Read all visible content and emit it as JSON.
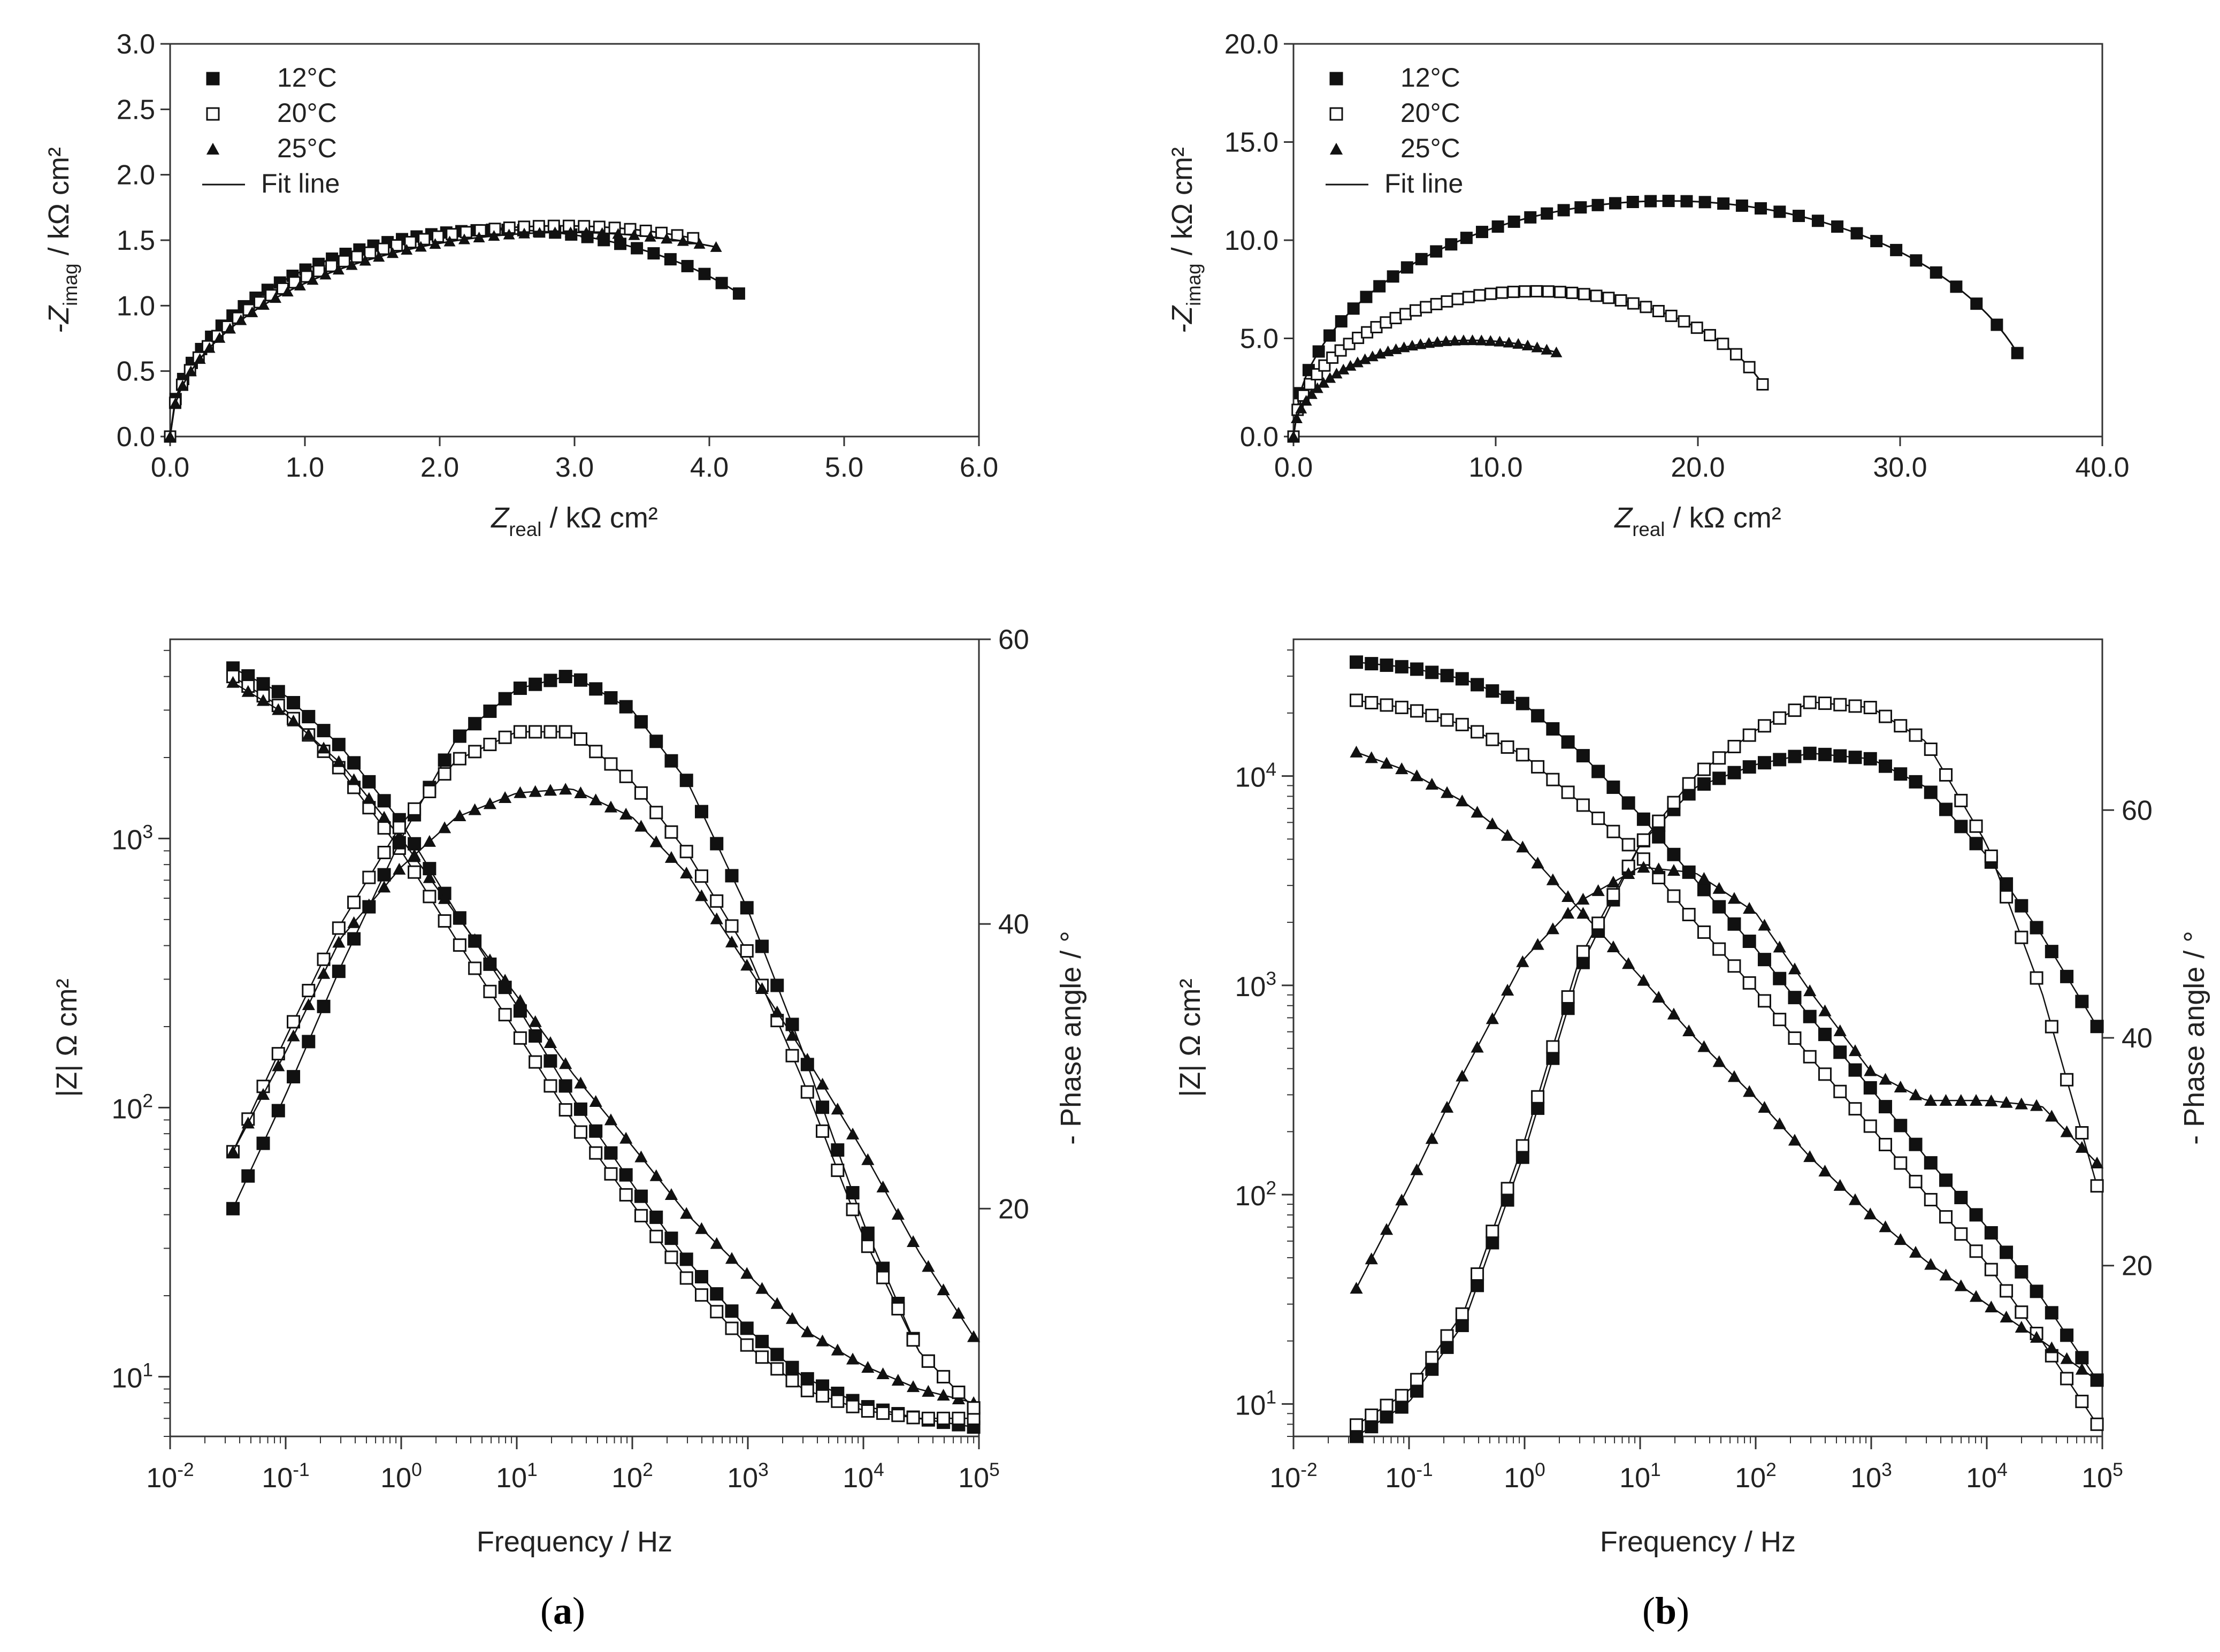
{
  "figure": {
    "panel_labels": [
      {
        "open": "(",
        "letter": "a",
        "close": ")"
      },
      {
        "open": "(",
        "letter": "b",
        "close": ")"
      }
    ]
  },
  "chart_data": [
    {
      "id": "nyquist-a",
      "type": "scatter",
      "panel": "a",
      "xlabel": "Z_real / kΩ cm²",
      "ylabel": "-Z_imag / kΩ cm²",
      "xlim": [
        0,
        6
      ],
      "ylim": [
        0,
        3
      ],
      "xticks": [
        "0.0",
        "1.0",
        "2.0",
        "3.0",
        "4.0",
        "5.0",
        "6.0"
      ],
      "yticks": [
        "0.0",
        "0.5",
        "1.0",
        "1.5",
        "2.0",
        "2.5",
        "3.0"
      ],
      "legend": {
        "position": "top-left",
        "entries": [
          "12°C",
          "20°C",
          "25°C",
          "Fit line"
        ]
      },
      "series": [
        {
          "name": "12°C",
          "marker": "filled-square",
          "arc": {
            "R": 4.9,
            "h": 1.58
          },
          "x_end": 4.22,
          "n": 42
        },
        {
          "name": "20°C",
          "marker": "open-square",
          "arc": {
            "R": 5.8,
            "h": 1.61
          },
          "x_end": 3.88,
          "n": 42
        },
        {
          "name": "25°C",
          "marker": "filled-triangle",
          "arc": {
            "R": 5.9,
            "h": 1.56
          },
          "x_end": 4.05,
          "n": 42
        }
      ]
    },
    {
      "id": "nyquist-b",
      "type": "scatter",
      "panel": "b",
      "xlabel": "Z_real / kΩ cm²",
      "ylabel": "-Z_imag / kΩ cm²",
      "xlim": [
        0,
        40
      ],
      "ylim": [
        0,
        20
      ],
      "xticks": [
        "0.0",
        "10.0",
        "20.0",
        "30.0",
        "40.0"
      ],
      "yticks": [
        "0.0",
        "5.0",
        "10.0",
        "15.0",
        "20.0"
      ],
      "legend": {
        "position": "top-left",
        "entries": [
          "12°C",
          "20°C",
          "25°C",
          "Fit line"
        ]
      },
      "series": [
        {
          "name": "12°C",
          "marker": "filled-square",
          "arc": {
            "R": 37.0,
            "h": 12.0
          },
          "x_end": 35.8,
          "n": 45
        },
        {
          "name": "20°C",
          "marker": "open-square",
          "arc": {
            "R": 24.0,
            "h": 7.4
          },
          "x_end": 23.2,
          "n": 45
        },
        {
          "name": "25°C",
          "marker": "filled-triangle",
          "arc": {
            "R": 17.5,
            "h": 4.9
          },
          "x_end": 13.0,
          "n": 35
        }
      ]
    },
    {
      "id": "bode-a",
      "type": "line",
      "panel": "a",
      "xlabel": "Frequency / Hz",
      "ylabel": "|Z| Ω cm²",
      "y2label": "- Phase angle / °",
      "xscale": "log",
      "xlim": [
        0.01,
        100000
      ],
      "ylim": [
        6,
        5500
      ],
      "yscale": "log",
      "y2lim": [
        4,
        60
      ],
      "xticks": [
        "10-2",
        "10-1",
        "100",
        "101",
        "102",
        "103",
        "104",
        "105"
      ],
      "yticks": [
        "101",
        "102",
        "103"
      ],
      "y2ticks": [
        "20",
        "40",
        "60"
      ],
      "series": [
        {
          "name": "12°C |Z|",
          "axis": "left",
          "marker": "filled-square",
          "points": [
            [
              0.035,
              4300
            ],
            [
              0.1,
              3400
            ],
            [
              0.3,
              2200
            ],
            [
              1,
              1150
            ],
            [
              3,
              530
            ],
            [
              10,
              240
            ],
            [
              30,
              110
            ],
            [
              100,
              52
            ],
            [
              300,
              27
            ],
            [
              1000,
              15
            ],
            [
              3000,
              10
            ],
            [
              10000,
              7.8
            ],
            [
              30000,
              7
            ],
            [
              90000,
              6.5
            ]
          ]
        },
        {
          "name": "20°C |Z|",
          "axis": "left",
          "marker": "open-square",
          "points": [
            [
              0.035,
              4000
            ],
            [
              0.1,
              3000
            ],
            [
              0.3,
              1800
            ],
            [
              1,
              900
            ],
            [
              3,
              420
            ],
            [
              10,
              190
            ],
            [
              30,
              90
            ],
            [
              100,
              44
            ],
            [
              300,
              23
            ],
            [
              1000,
              13
            ],
            [
              3000,
              9
            ],
            [
              10000,
              7.5
            ],
            [
              30000,
              7
            ],
            [
              90000,
              7
            ]
          ]
        },
        {
          "name": "25°C |Z|",
          "axis": "left",
          "marker": "filled-triangle",
          "points": [
            [
              0.035,
              3800
            ],
            [
              0.1,
              2900
            ],
            [
              0.3,
              1900
            ],
            [
              1,
              1000
            ],
            [
              3,
              520
            ],
            [
              10,
              260
            ],
            [
              30,
              135
            ],
            [
              100,
              72
            ],
            [
              300,
              40
            ],
            [
              1000,
              24
            ],
            [
              3000,
              15
            ],
            [
              10000,
              11
            ],
            [
              30000,
              9
            ],
            [
              90000,
              8
            ]
          ]
        },
        {
          "name": "12°C phase",
          "axis": "right",
          "marker": "filled-square",
          "points": [
            [
              0.035,
              20
            ],
            [
              0.1,
              28
            ],
            [
              0.3,
              37
            ],
            [
              1,
              46
            ],
            [
              3,
              53
            ],
            [
              10,
              56.5
            ],
            [
              30,
              57.5
            ],
            [
              100,
              55
            ],
            [
              300,
              50
            ],
            [
              1000,
              41
            ],
            [
              3000,
              31
            ],
            [
              10000,
              19
            ],
            [
              30000,
              10
            ],
            [
              90000,
              6
            ]
          ]
        },
        {
          "name": "20°C phase",
          "axis": "right",
          "marker": "open-square",
          "points": [
            [
              0.035,
              24
            ],
            [
              0.1,
              32
            ],
            [
              0.3,
              40
            ],
            [
              1,
              47
            ],
            [
              3,
              51.5
            ],
            [
              10,
              53.5
            ],
            [
              30,
              53.5
            ],
            [
              100,
              50
            ],
            [
              300,
              45
            ],
            [
              1000,
              38
            ],
            [
              3000,
              29
            ],
            [
              10000,
              18
            ],
            [
              30000,
              10
            ],
            [
              90000,
              6
            ]
          ]
        },
        {
          "name": "25°C phase",
          "axis": "right",
          "marker": "filled-triangle",
          "points": [
            [
              0.035,
              24
            ],
            [
              0.1,
              31
            ],
            [
              0.3,
              39
            ],
            [
              1,
              44
            ],
            [
              3,
              47.5
            ],
            [
              10,
              49.2
            ],
            [
              30,
              49.5
            ],
            [
              100,
              47.5
            ],
            [
              300,
              43.5
            ],
            [
              1000,
              37
            ],
            [
              3000,
              31
            ],
            [
              10000,
              24
            ],
            [
              30000,
              17
            ],
            [
              90000,
              11
            ]
          ]
        }
      ]
    },
    {
      "id": "bode-b",
      "type": "line",
      "panel": "b",
      "xlabel": "Frequency / Hz",
      "ylabel": "|Z| Ω cm²",
      "y2label": "- Phase angle / °",
      "xscale": "log",
      "xlim": [
        0.01,
        100000
      ],
      "ylim": [
        7,
        45000
      ],
      "yscale": "log",
      "y2lim": [
        5,
        75
      ],
      "xticks": [
        "10-2",
        "10-1",
        "100",
        "101",
        "102",
        "103",
        "104",
        "105"
      ],
      "yticks": [
        "101",
        "102",
        "103",
        "104"
      ],
      "y2ticks": [
        "20",
        "40",
        "60"
      ],
      "series": [
        {
          "name": "12°C |Z|",
          "axis": "left",
          "marker": "filled-square",
          "points": [
            [
              0.035,
              35000
            ],
            [
              0.1,
              33000
            ],
            [
              0.3,
              29000
            ],
            [
              1,
              22000
            ],
            [
              3,
              13000
            ],
            [
              10,
              6500
            ],
            [
              30,
              3200
            ],
            [
              100,
              1500
            ],
            [
              300,
              700
            ],
            [
              1000,
              320
            ],
            [
              3000,
              150
            ],
            [
              10000,
              70
            ],
            [
              30000,
              32
            ],
            [
              90000,
              13
            ]
          ]
        },
        {
          "name": "20°C |Z|",
          "axis": "left",
          "marker": "open-square",
          "points": [
            [
              0.035,
              23000
            ],
            [
              0.1,
              21000
            ],
            [
              0.3,
              17500
            ],
            [
              1,
              12500
            ],
            [
              3,
              7500
            ],
            [
              10,
              4200
            ],
            [
              30,
              2000
            ],
            [
              100,
              950
            ],
            [
              300,
              450
            ],
            [
              1000,
              210
            ],
            [
              3000,
              100
            ],
            [
              10000,
              47
            ],
            [
              30000,
              20
            ],
            [
              90000,
              8
            ]
          ]
        },
        {
          "name": "25°C |Z|",
          "axis": "left",
          "marker": "filled-triangle",
          "points": [
            [
              0.035,
              13000
            ],
            [
              0.1,
              10500
            ],
            [
              0.3,
              7500
            ],
            [
              1,
              4500
            ],
            [
              3,
              2300
            ],
            [
              10,
              1100
            ],
            [
              30,
              560
            ],
            [
              100,
              290
            ],
            [
              300,
              150
            ],
            [
              1000,
              80
            ],
            [
              3000,
              48
            ],
            [
              10000,
              30
            ],
            [
              30000,
              20
            ],
            [
              90000,
              13
            ]
          ]
        },
        {
          "name": "12°C phase",
          "axis": "right",
          "marker": "filled-square",
          "points": [
            [
              0.035,
              5
            ],
            [
              0.1,
              8
            ],
            [
              0.3,
              15
            ],
            [
              1,
              30
            ],
            [
              3,
              46
            ],
            [
              10,
              57
            ],
            [
              30,
              62
            ],
            [
              100,
              64
            ],
            [
              300,
              65
            ],
            [
              1000,
              64.5
            ],
            [
              3000,
              62
            ],
            [
              10000,
              56
            ],
            [
              30000,
              49
            ],
            [
              90000,
              41
            ]
          ]
        },
        {
          "name": "20°C phase",
          "axis": "right",
          "marker": "open-square",
          "points": [
            [
              0.035,
              6
            ],
            [
              0.1,
              9
            ],
            [
              0.3,
              16
            ],
            [
              1,
              31
            ],
            [
              3,
              47
            ],
            [
              10,
              57
            ],
            [
              30,
              63
            ],
            [
              100,
              67
            ],
            [
              300,
              69.5
            ],
            [
              1000,
              69
            ],
            [
              3000,
              66
            ],
            [
              10000,
              57
            ],
            [
              30000,
              44
            ],
            [
              90000,
              27
            ]
          ]
        },
        {
          "name": "25°C phase",
          "axis": "right",
          "marker": "filled-triangle",
          "points": [
            [
              0.035,
              18
            ],
            [
              0.1,
              27
            ],
            [
              0.3,
              37
            ],
            [
              1,
              47
            ],
            [
              3,
              52
            ],
            [
              10,
              55
            ],
            [
              30,
              54.5
            ],
            [
              100,
              51
            ],
            [
              300,
              44
            ],
            [
              1000,
              37
            ],
            [
              3000,
              34.5
            ],
            [
              10000,
              34.5
            ],
            [
              30000,
              34
            ],
            [
              90000,
              29
            ]
          ]
        }
      ]
    }
  ]
}
